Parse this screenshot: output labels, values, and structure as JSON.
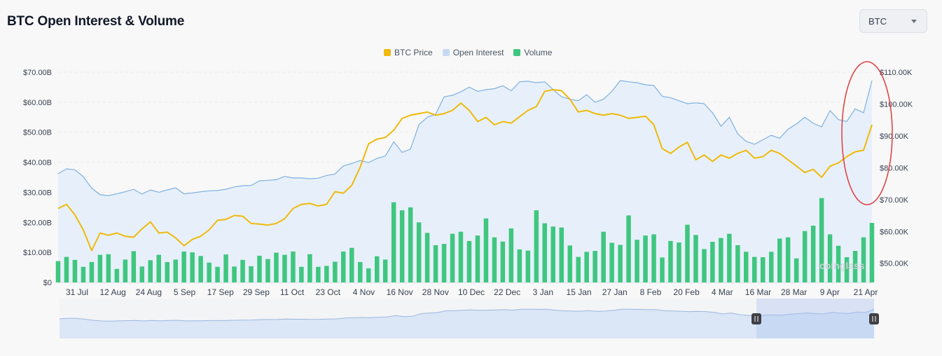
{
  "header": {
    "title": "BTC Open Interest & Volume",
    "asset_select": {
      "value": "BTC"
    }
  },
  "colors": {
    "btc_price": "#f0b90b",
    "open_interest_line": "#7fb0e0",
    "open_interest_fill": "#e4eefa",
    "volume": "#3fc67f",
    "annotation": "#e03a3a"
  },
  "watermark": "coinglass",
  "chart_data": {
    "type": "line",
    "legend": [
      "BTC Price",
      "Open Interest",
      "Volume"
    ],
    "legend_position": "top-center",
    "grid": true,
    "x_tick_labels": [
      "31 Jul",
      "12 Aug",
      "24 Aug",
      "5 Sep",
      "17 Sep",
      "29 Sep",
      "11 Oct",
      "23 Oct",
      "4 Nov",
      "16 Nov",
      "28 Nov",
      "10 Dec",
      "22 Dec",
      "3 Jan",
      "15 Jan",
      "27 Jan",
      "8 Feb",
      "20 Feb",
      "4 Mar",
      "16 Mar",
      "28 Mar",
      "9 Apr",
      "21 Apr"
    ],
    "left_axis": {
      "ticks": [
        "$0",
        "$10.00B",
        "$20.00B",
        "$30.00B",
        "$40.00B",
        "$50.00B",
        "$60.00B",
        "$70.00B"
      ],
      "range": [
        0,
        70
      ],
      "unit": "B"
    },
    "right_axis": {
      "ticks": [
        "$50.00K",
        "$60.00K",
        "$70.00K",
        "$80.00K",
        "$90.00K",
        "$100.00K",
        "$110.00K"
      ],
      "range": [
        44,
        110
      ],
      "unit": "K"
    },
    "series": [
      {
        "name": "Open Interest",
        "axis": "left",
        "values": [
          36.2,
          37.8,
          37.5,
          35.2,
          31.4,
          29.2,
          28.9,
          29.5,
          30.2,
          31.0,
          29.4,
          30.8,
          30.0,
          30.8,
          31.5,
          29.5,
          29.8,
          30.2,
          30.5,
          30.6,
          31.0,
          31.8,
          32.2,
          32.3,
          33.8,
          34.0,
          34.2,
          35.3,
          34.8,
          34.8,
          34.5,
          34.7,
          35.6,
          36.1,
          38.8,
          39.6,
          40.6,
          39.9,
          41.3,
          42.1,
          46.8,
          43.3,
          44.4,
          52.5,
          55.0,
          56.0,
          61.8,
          62.3,
          63.5,
          65.0,
          63.6,
          64.2,
          64.5,
          65.5,
          63.8,
          66.8,
          67.0,
          66.5,
          66.8,
          64.2,
          61.8,
          61.0,
          60.5,
          62.5,
          60.0,
          61.0,
          63.6,
          67.2,
          66.8,
          66.5,
          65.8,
          65.6,
          62.0,
          61.5,
          60.5,
          59.5,
          59.8,
          59.5,
          56.5,
          52.0,
          55.0,
          49.5,
          47.0,
          46.0,
          47.5,
          49.0,
          48.0,
          51.0,
          52.8,
          55.0,
          53.0,
          51.8,
          57.2,
          54.2,
          53.6,
          57.8,
          56.5,
          67.2
        ]
      },
      {
        "name": "BTC Price",
        "axis": "right",
        "values": [
          67.2,
          68.5,
          65.2,
          60.5,
          54.0,
          59.5,
          58.8,
          59.5,
          58.5,
          58.2,
          60.8,
          63.0,
          59.5,
          59.8,
          58.0,
          55.5,
          57.5,
          58.5,
          60.5,
          63.5,
          63.8,
          65.0,
          64.8,
          62.5,
          62.3,
          62.0,
          62.5,
          64.0,
          67.2,
          68.5,
          68.8,
          68.0,
          68.5,
          72.5,
          72.0,
          74.5,
          80.2,
          87.5,
          89.0,
          89.5,
          91.8,
          95.5,
          96.5,
          97.0,
          97.5,
          96.5,
          97.0,
          98.0,
          100.3,
          98.0,
          94.5,
          95.8,
          93.5,
          94.5,
          94.0,
          96.0,
          98.0,
          99.2,
          104.0,
          104.5,
          104.2,
          101.5,
          97.5,
          98.0,
          97.0,
          96.5,
          97.0,
          96.5,
          95.5,
          95.8,
          96.2,
          93.5,
          86.0,
          84.5,
          86.5,
          88.0,
          82.5,
          84.0,
          82.0,
          84.0,
          83.0,
          84.5,
          85.5,
          83.0,
          83.5,
          85.5,
          84.5,
          82.5,
          80.5,
          78.5,
          79.5,
          77.0,
          80.5,
          81.5,
          83.5,
          85.0,
          85.5,
          93.5
        ]
      },
      {
        "name": "Volume",
        "axis": "left",
        "values": [
          7.1,
          8.5,
          7.5,
          5.2,
          6.8,
          9.2,
          9.4,
          4.5,
          7.6,
          10.4,
          5.3,
          7.4,
          9.2,
          6.8,
          7.6,
          10.3,
          10.0,
          8.8,
          6.6,
          5.2,
          9.3,
          5.3,
          7.5,
          5.4,
          8.9,
          7.8,
          9.9,
          9.2,
          10.3,
          5.2,
          9.4,
          5.2,
          5.5,
          6.9,
          10.3,
          11.5,
          6.8,
          4.7,
          8.7,
          7.6,
          26.7,
          24.0,
          25.0,
          20.0,
          16.5,
          12.4,
          12.8,
          16.2,
          16.9,
          13.8,
          15.6,
          21.3,
          15.0,
          13.6,
          18.0,
          11.0,
          10.6,
          24.0,
          19.7,
          18.6,
          18.3,
          12.3,
          8.5,
          10.2,
          10.5,
          16.9,
          13.2,
          12.5,
          22.3,
          14.2,
          15.6,
          16.0,
          8.3,
          13.8,
          13.3,
          19.2,
          15.8,
          11.1,
          13.5,
          14.8,
          16.2,
          12.4,
          10.2,
          8.5,
          8.4,
          10.2,
          14.6,
          15.0,
          8.0,
          17.1,
          18.9,
          28.1,
          16.0,
          12.2,
          8.4,
          10.5,
          15.0,
          19.8
        ]
      }
    ],
    "navigator": {
      "series": "Open Interest",
      "selection": [
        "16 Mar",
        "21 Apr"
      ]
    },
    "annotation": {
      "shape": "ellipse",
      "note": ""
    }
  }
}
